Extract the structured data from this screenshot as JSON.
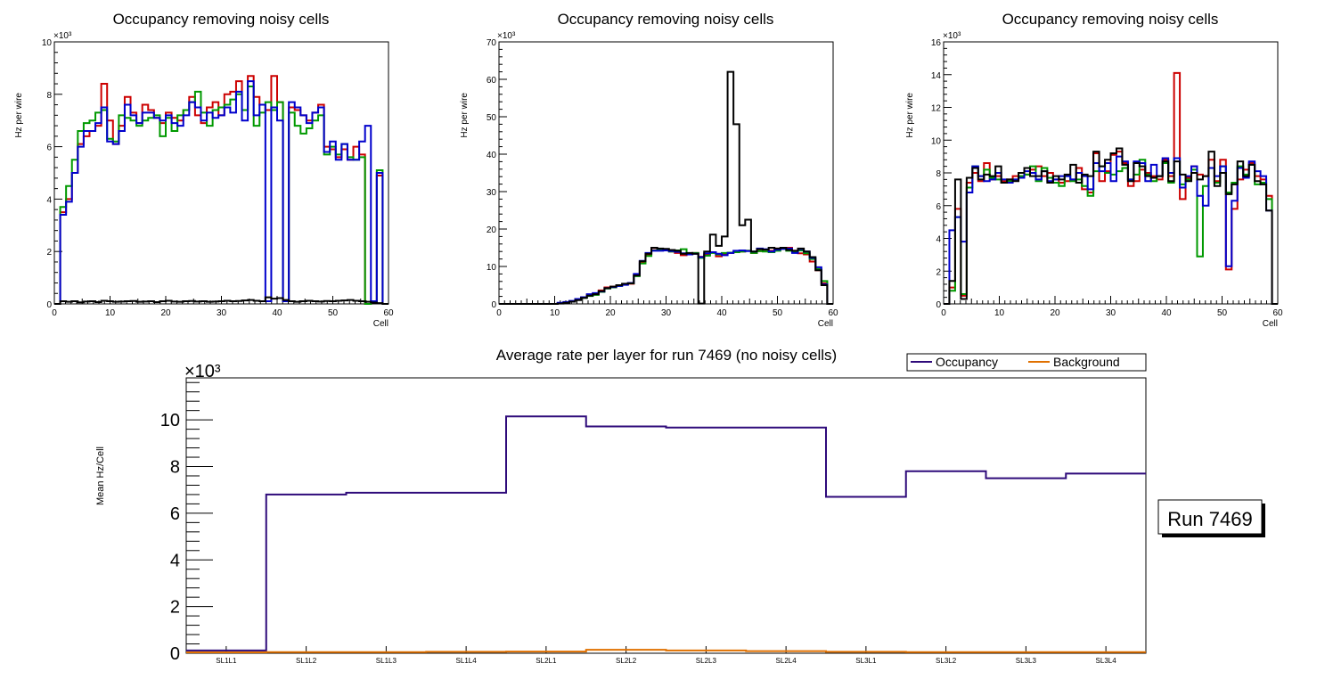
{
  "chart_data": [
    {
      "type": "line",
      "title": "Occupancy removing noisy cells",
      "xlabel": "Cell",
      "ylabel": "Hz per wire",
      "exponent_label": "×10³",
      "xlim": [
        0,
        60
      ],
      "ylim": [
        0,
        10
      ],
      "xticks": [
        0,
        10,
        20,
        30,
        40,
        50,
        60
      ],
      "yticks": [
        0,
        2,
        4,
        6,
        8,
        10
      ],
      "series": [
        {
          "name": "red",
          "color": "#cc0000",
          "values": [
            0,
            3.5,
            4,
            5,
            6.1,
            6.4,
            6.6,
            6.8,
            8.4,
            7,
            6.1,
            6.8,
            7.9,
            7.3,
            6.9,
            7.6,
            7.4,
            7.1,
            6.9,
            7.3,
            7.1,
            7.0,
            7.4,
            7.9,
            7.2,
            6.9,
            7.5,
            7.7,
            7.2,
            8.0,
            8.1,
            8.5,
            7.4,
            8.7,
            7.9,
            7.6,
            7.4,
            8.7,
            7.7,
            0.1,
            7.5,
            7.4,
            7.2,
            7.0,
            7.3,
            7.6,
            6.0,
            5.9,
            5.6,
            5.9,
            5.5,
            6.0,
            5.7,
            0.0,
            0.1,
            4.9,
            0
          ]
        },
        {
          "name": "green",
          "color": "#009900",
          "values": [
            0,
            3.7,
            4.5,
            5.5,
            6.6,
            6.9,
            7.0,
            7.3,
            7.4,
            6.3,
            6.2,
            7.2,
            7.1,
            7.0,
            6.8,
            7.0,
            7.1,
            7.2,
            6.4,
            7.1,
            6.6,
            7.2,
            7.4,
            7.7,
            8.1,
            7.3,
            6.8,
            7.4,
            7.5,
            7.6,
            7.8,
            8.0,
            7.4,
            8.3,
            6.8,
            7.3,
            7.7,
            7.4,
            7.7,
            0.1,
            7.3,
            6.8,
            6.5,
            6.7,
            7.0,
            7.2,
            5.7,
            6.0,
            5.7,
            6.1,
            5.6,
            5.5,
            5.6,
            0.0,
            0.1,
            5.1,
            0
          ]
        },
        {
          "name": "blue",
          "color": "#0000cc",
          "values": [
            0,
            3.4,
            3.9,
            5.0,
            6.0,
            6.6,
            6.6,
            6.9,
            7.5,
            6.2,
            6.1,
            6.6,
            7.6,
            7.2,
            6.9,
            7.3,
            7.3,
            7.1,
            7.0,
            7.2,
            6.9,
            6.8,
            7.2,
            7.7,
            7.5,
            7.0,
            7.3,
            7.1,
            7.2,
            7.5,
            7.3,
            8.1,
            7.0,
            8.5,
            7.2,
            7.6,
            0.1,
            7.5,
            7.0,
            0.1,
            7.7,
            7.5,
            7.2,
            6.9,
            7.3,
            7.5,
            5.8,
            6.2,
            5.5,
            6.1,
            5.5,
            5.5,
            6.2,
            6.8,
            0.1,
            5.0,
            0
          ]
        },
        {
          "name": "black",
          "color": "#000000",
          "values": [
            0,
            0.1,
            0.08,
            0.1,
            0.06,
            0.09,
            0.1,
            0.07,
            0.12,
            0.1,
            0.08,
            0.09,
            0.1,
            0.11,
            0.08,
            0.09,
            0.1,
            0.07,
            0.1,
            0.12,
            0.09,
            0.08,
            0.1,
            0.11,
            0.09,
            0.1,
            0.08,
            0.09,
            0.1,
            0.12,
            0.1,
            0.11,
            0.13,
            0.15,
            0.12,
            0.1,
            0.25,
            0.2,
            0.22,
            0.15,
            0.1,
            0.08,
            0.1,
            0.12,
            0.1,
            0.09,
            0.11,
            0.1,
            0.12,
            0.13,
            0.15,
            0.12,
            0.1,
            0.08,
            0.05,
            0.03,
            0
          ]
        }
      ]
    },
    {
      "type": "line",
      "title": "Occupancy removing noisy cells",
      "xlabel": "Cell",
      "ylabel": "Hz per wire",
      "exponent_label": "×10³",
      "xlim": [
        0,
        60
      ],
      "ylim": [
        0,
        70
      ],
      "xticks": [
        0,
        10,
        20,
        30,
        40,
        50,
        60
      ],
      "yticks": [
        0,
        10,
        20,
        30,
        40,
        50,
        60,
        70
      ],
      "series": [
        {
          "name": "red",
          "color": "#cc0000",
          "values": [
            0,
            0,
            0,
            0,
            0,
            0,
            0,
            0,
            0,
            0,
            0.2,
            0.4,
            0.7,
            1.3,
            1.7,
            2.5,
            2.8,
            3.6,
            4.4,
            4.6,
            4.9,
            5.2,
            5.4,
            7.8,
            11.2,
            13.2,
            14.9,
            14.6,
            14.4,
            14.0,
            13.6,
            13.0,
            13.3,
            13.6,
            12.6,
            13.2,
            13.8,
            12.7,
            13.3,
            13.6,
            13.9,
            14.0,
            14.2,
            13.6,
            14.1,
            14.5,
            14.2,
            14.8,
            14.8,
            15.0,
            14.2,
            13.5,
            13.2,
            11.3,
            9.0,
            5.5,
            0
          ]
        },
        {
          "name": "green",
          "color": "#009900",
          "values": [
            0,
            0,
            0,
            0,
            0,
            0,
            0,
            0,
            0,
            0,
            0.2,
            0.4,
            0.6,
            1.1,
            1.6,
            2.1,
            2.4,
            3.2,
            4.1,
            4.4,
            4.8,
            5.2,
            5.5,
            7.4,
            10.8,
            12.8,
            14.3,
            14.6,
            14.3,
            14.0,
            14.3,
            14.6,
            13.2,
            13.6,
            12.3,
            12.9,
            13.6,
            13.2,
            13.6,
            13.7,
            13.8,
            14.0,
            14.2,
            13.6,
            14.1,
            14.0,
            13.8,
            14.2,
            14.7,
            14.2,
            13.8,
            14.3,
            13.5,
            12.0,
            9.3,
            6.1,
            0
          ]
        },
        {
          "name": "blue",
          "color": "#0000cc",
          "values": [
            0,
            0,
            0,
            0,
            0,
            0,
            0,
            0,
            0,
            0,
            0.3,
            0.5,
            0.8,
            1.3,
            1.8,
            2.6,
            2.9,
            3.3,
            4.2,
            4.5,
            4.8,
            5.1,
            5.6,
            8.0,
            11.5,
            13.6,
            14.2,
            14.2,
            14.3,
            14.1,
            13.9,
            13.5,
            13.2,
            13.4,
            12.5,
            13.5,
            13.8,
            13.4,
            13.0,
            13.6,
            14.2,
            14.3,
            14.1,
            14.0,
            14.8,
            14.6,
            14.0,
            14.5,
            14.7,
            14.8,
            13.6,
            14.6,
            14.0,
            12.3,
            9.8,
            5.2,
            0
          ]
        },
        {
          "name": "black",
          "color": "#000000",
          "values": [
            0,
            0,
            0,
            0,
            0,
            0,
            0,
            0,
            0,
            0,
            0.1,
            0.3,
            0.6,
            1.0,
            1.6,
            2.2,
            2.6,
            3.4,
            4.2,
            4.6,
            5.0,
            5.4,
            5.5,
            7.6,
            11.4,
            13.4,
            15.0,
            14.8,
            14.7,
            14.4,
            14.2,
            13.4,
            13.6,
            13.4,
            0.1,
            14.0,
            18.5,
            15.5,
            18.0,
            62.0,
            48.0,
            21.0,
            22.5,
            14.0,
            14.6,
            14.5,
            15.0,
            14.8,
            15.0,
            14.4,
            14.2,
            14.8,
            14.0,
            12.5,
            9.0,
            5.0,
            0
          ]
        }
      ]
    },
    {
      "type": "line",
      "title": "Occupancy removing noisy cells",
      "xlabel": "Cell",
      "ylabel": "Hz per wire",
      "exponent_label": "×10³",
      "xlim": [
        0,
        60
      ],
      "ylim": [
        0,
        16
      ],
      "xticks": [
        0,
        10,
        20,
        30,
        40,
        50,
        60
      ],
      "yticks": [
        0,
        2,
        4,
        6,
        8,
        10,
        12,
        14,
        16
      ],
      "series": [
        {
          "name": "red",
          "color": "#cc0000",
          "values": [
            0,
            1.0,
            5.8,
            0.5,
            7.4,
            8.0,
            7.5,
            8.6,
            7.6,
            7.8,
            7.5,
            7.6,
            7.8,
            7.8,
            7.9,
            8.2,
            8.4,
            7.8,
            8.0,
            7.6,
            7.4,
            7.5,
            7.6,
            8.3,
            7.0,
            6.8,
            9.2,
            7.5,
            8.1,
            9.1,
            9.3,
            8.6,
            7.2,
            7.5,
            8.2,
            8.0,
            7.8,
            7.6,
            8.8,
            7.8,
            14.1,
            6.4,
            7.7,
            8.4,
            7.9,
            7.8,
            8.8,
            7.5,
            8.8,
            2.1,
            5.8,
            7.6,
            8.2,
            8.6,
            7.8,
            7.6,
            6.6,
            0
          ]
        },
        {
          "name": "green",
          "color": "#009900",
          "values": [
            0,
            0.8,
            5.3,
            0.6,
            7.1,
            8.4,
            7.8,
            8.2,
            7.7,
            7.6,
            7.4,
            7.5,
            7.6,
            7.8,
            7.9,
            8.4,
            7.5,
            8.3,
            7.7,
            7.4,
            7.2,
            7.8,
            7.5,
            7.6,
            7.2,
            6.6,
            8.1,
            8.4,
            8.0,
            7.9,
            8.1,
            8.3,
            7.6,
            7.9,
            8.8,
            7.9,
            7.5,
            7.8,
            8.6,
            7.4,
            8.9,
            7.3,
            7.6,
            8.2,
            2.9,
            7.2,
            8.3,
            7.4,
            8.4,
            6.8,
            7.4,
            8.4,
            7.9,
            8.5,
            7.3,
            7.4,
            6.4,
            0
          ]
        },
        {
          "name": "blue",
          "color": "#0000cc",
          "values": [
            0,
            4.5,
            5.3,
            3.8,
            6.8,
            8.4,
            7.8,
            7.5,
            7.6,
            8.0,
            7.6,
            7.4,
            7.6,
            7.7,
            8.1,
            8.0,
            7.6,
            8.1,
            7.5,
            7.6,
            7.8,
            7.8,
            7.6,
            8.0,
            7.8,
            7.0,
            8.6,
            8.1,
            8.6,
            7.5,
            9.0,
            8.7,
            7.6,
            8.7,
            8.6,
            7.5,
            8.5,
            7.8,
            8.9,
            8.0,
            8.9,
            7.1,
            7.8,
            8.4,
            6.6,
            6.0,
            8.3,
            7.8,
            8.4,
            2.3,
            6.3,
            8.3,
            7.7,
            8.7,
            8.1,
            7.8,
            5.7,
            0
          ]
        },
        {
          "name": "black",
          "color": "#000000",
          "values": [
            0,
            1.4,
            7.6,
            0.3,
            7.7,
            8.3,
            7.6,
            7.9,
            7.8,
            8.4,
            7.4,
            7.6,
            7.5,
            8.0,
            8.3,
            7.8,
            7.8,
            8.1,
            7.4,
            7.8,
            7.6,
            7.9,
            8.5,
            7.4,
            7.9,
            7.8,
            9.3,
            8.4,
            8.8,
            9.2,
            9.5,
            8.5,
            7.5,
            8.6,
            8.4,
            7.8,
            7.7,
            7.8,
            8.7,
            7.5,
            8.7,
            7.9,
            7.5,
            8.0,
            7.6,
            7.8,
            9.3,
            7.2,
            8.0,
            6.7,
            7.3,
            8.7,
            7.8,
            8.5,
            7.5,
            7.3,
            5.7,
            0
          ]
        }
      ]
    },
    {
      "type": "line",
      "title": "Average rate per layer for run 7469 (no noisy cells)",
      "xlabel": "",
      "ylabel": "Mean Hz/Cell",
      "exponent_label": "×10³",
      "ylim": [
        0,
        11.8
      ],
      "yticks": [
        0,
        2,
        4,
        6,
        8,
        10
      ],
      "categories": [
        "SL1L1",
        "SL1L2",
        "SL1L3",
        "SL1L4",
        "SL2L1",
        "SL2L2",
        "SL2L3",
        "SL2L4",
        "SL3L1",
        "SL3L2",
        "SL3L3",
        "SL3L4"
      ],
      "legend": {
        "position": "top-right",
        "entries": [
          "Occupancy",
          "Background"
        ]
      },
      "series": [
        {
          "name": "Occupancy",
          "color": "#2e0a7a",
          "values": [
            0.12,
            6.8,
            6.88,
            6.88,
            10.15,
            9.72,
            9.67,
            9.67,
            6.7,
            7.8,
            7.5,
            7.7
          ]
        },
        {
          "name": "Background",
          "color": "#e07000",
          "values": [
            0.04,
            0.05,
            0.05,
            0.06,
            0.07,
            0.15,
            0.12,
            0.09,
            0.06,
            0.05,
            0.05,
            0.05
          ]
        }
      ]
    }
  ],
  "run_label": "Run 7469"
}
